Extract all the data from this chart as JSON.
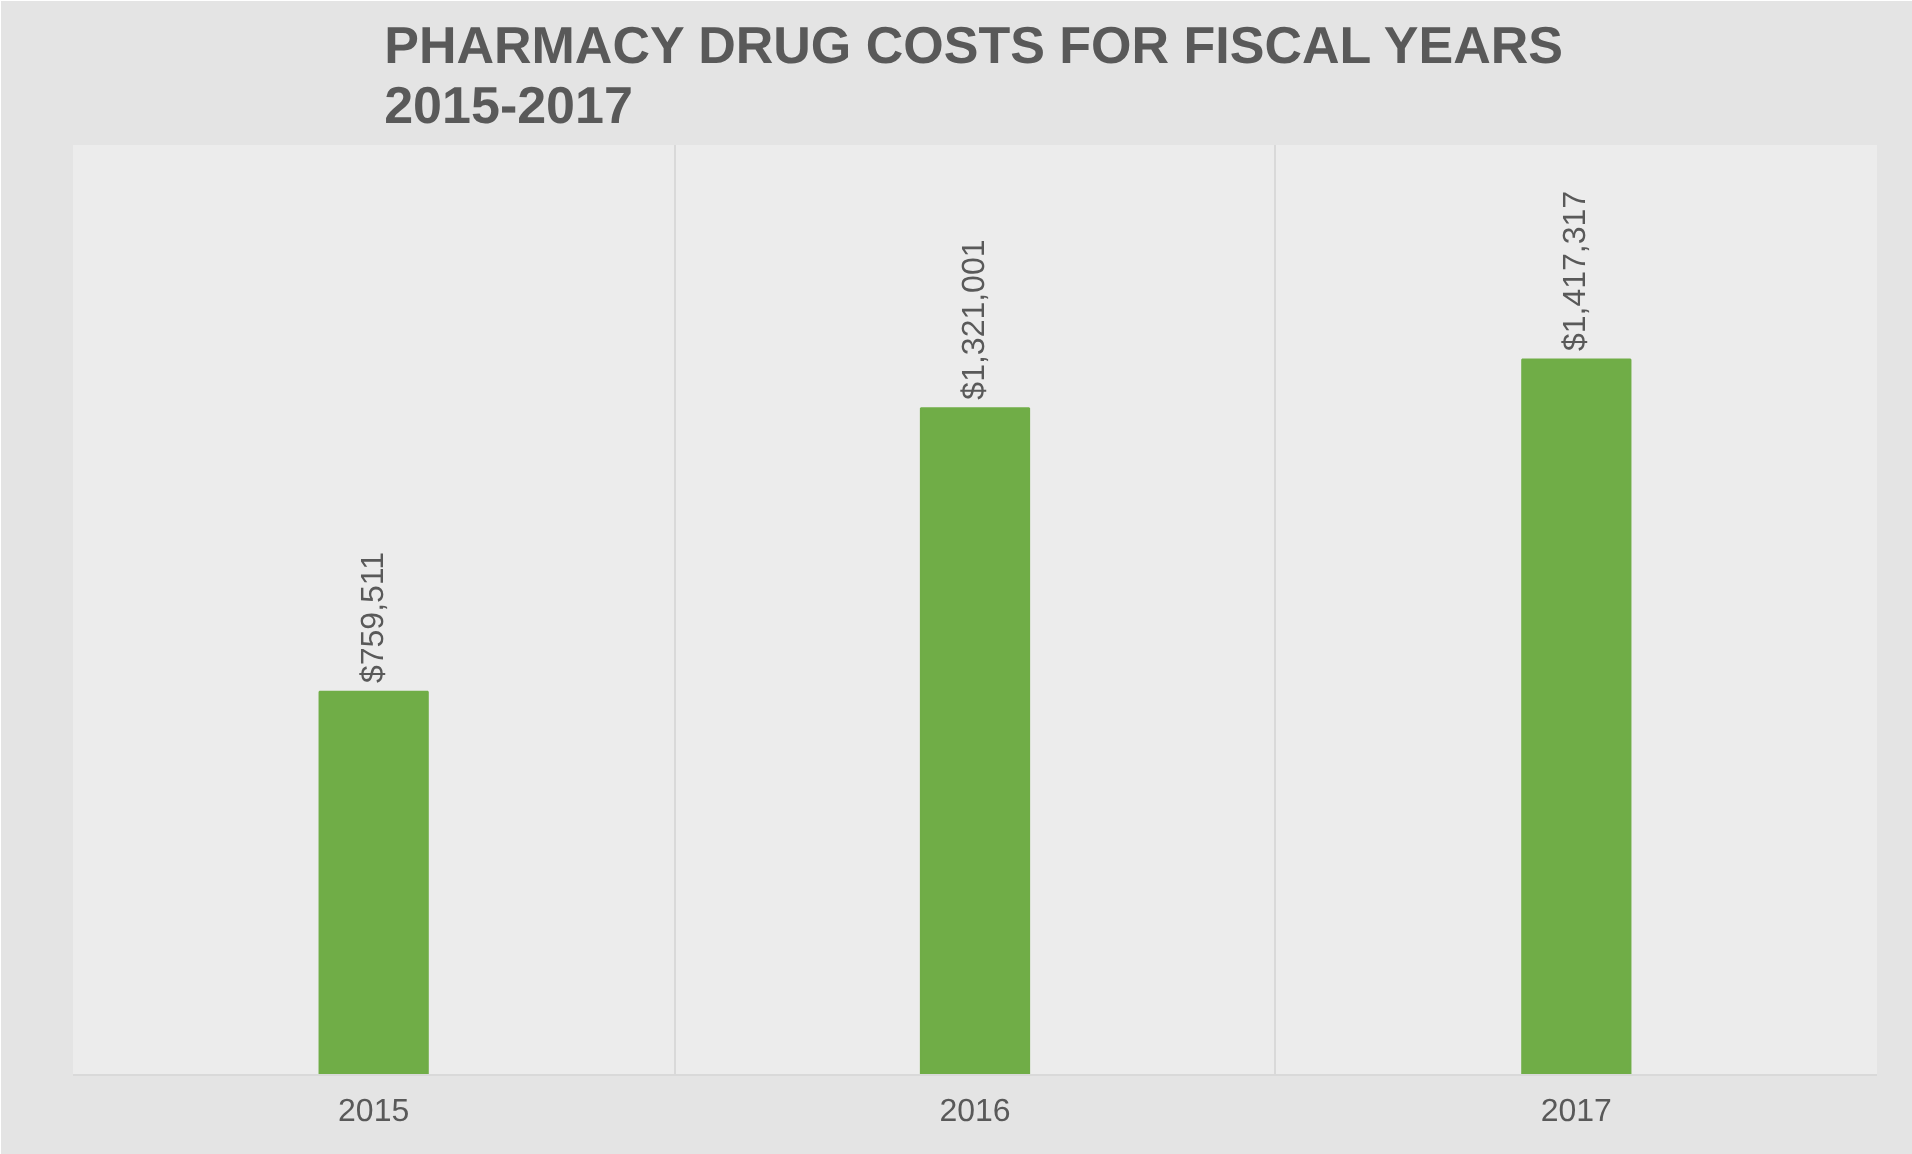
{
  "chart_data": {
    "type": "bar",
    "title": "PHARMACY DRUG COSTS FOR FISCAL YEARS 2015-2017",
    "categories": [
      "2015",
      "2016",
      "2017"
    ],
    "values": [
      759511,
      1321001,
      1417317
    ],
    "value_labels": [
      "$759,511",
      "$1,321,001",
      "$1,417,317"
    ],
    "color": "#70ad47",
    "grid": "x"
  }
}
